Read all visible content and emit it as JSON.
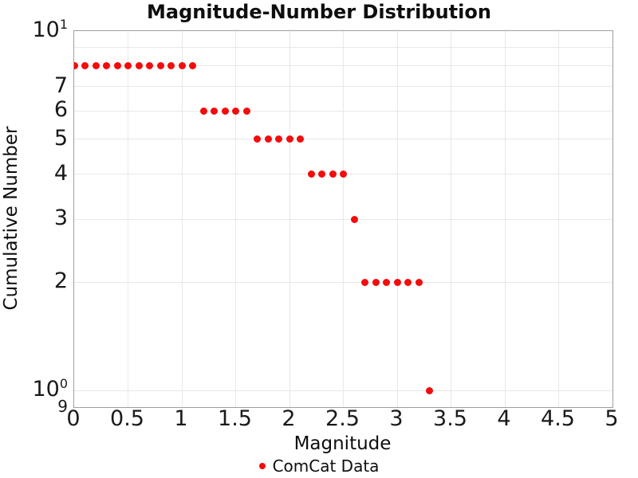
{
  "chart_data": {
    "type": "scatter",
    "title": "Magnitude-Number Distribution",
    "xlabel": "Magnitude",
    "ylabel": "Cumulative Number",
    "grid": true,
    "legend_position": "bottom-center",
    "colors": {
      "marker": "#f40b0b",
      "gridline": "#e8e8e8",
      "plot_border": "#9e9e9e",
      "text": "#0e0e0e"
    },
    "x_axis": {
      "scale": "linear",
      "min": 0,
      "max": 5,
      "gridlines": [
        0.5,
        1,
        1.5,
        2,
        2.5,
        3,
        3.5,
        4,
        4.5
      ],
      "ticks": [
        {
          "value": 0,
          "label": "0"
        },
        {
          "value": 0.5,
          "label": "0.5"
        },
        {
          "value": 1,
          "label": "1"
        },
        {
          "value": 1.5,
          "label": "1.5"
        },
        {
          "value": 2,
          "label": "2"
        },
        {
          "value": 2.5,
          "label": "2.5"
        },
        {
          "value": 3,
          "label": "3"
        },
        {
          "value": 3.5,
          "label": "3.5"
        },
        {
          "value": 4,
          "label": "4"
        },
        {
          "value": 4.5,
          "label": "4.5"
        },
        {
          "value": 5,
          "label": "5"
        }
      ]
    },
    "y_axis": {
      "scale": "log",
      "min": 0.9,
      "max": 10,
      "gridlines": [
        9,
        8,
        7,
        6,
        5,
        4,
        3,
        2,
        1
      ],
      "ticks": [
        {
          "value": 10,
          "label": "10",
          "sup": "1",
          "kind": "major"
        },
        {
          "value": 7,
          "label": "7",
          "kind": "major"
        },
        {
          "value": 6,
          "label": "6",
          "kind": "major"
        },
        {
          "value": 5,
          "label": "5",
          "kind": "major"
        },
        {
          "value": 4,
          "label": "4",
          "kind": "major"
        },
        {
          "value": 3,
          "label": "3",
          "kind": "major"
        },
        {
          "value": 2,
          "label": "2",
          "kind": "major"
        },
        {
          "value": 1,
          "label": "10",
          "sup": "0",
          "kind": "major"
        },
        {
          "value": 0.9,
          "label": "9",
          "kind": "minor"
        }
      ]
    },
    "series": [
      {
        "name": "ComCat Data",
        "color": "#f40b0b",
        "marker": "circle",
        "marker_size": 9,
        "points": [
          [
            0.0,
            8
          ],
          [
            0.1,
            8
          ],
          [
            0.2,
            8
          ],
          [
            0.3,
            8
          ],
          [
            0.4,
            8
          ],
          [
            0.5,
            8
          ],
          [
            0.6,
            8
          ],
          [
            0.7,
            8
          ],
          [
            0.8,
            8
          ],
          [
            0.9,
            8
          ],
          [
            1.0,
            8
          ],
          [
            1.1,
            8
          ],
          [
            1.2,
            6
          ],
          [
            1.3,
            6
          ],
          [
            1.4,
            6
          ],
          [
            1.5,
            6
          ],
          [
            1.6,
            6
          ],
          [
            1.7,
            5
          ],
          [
            1.8,
            5
          ],
          [
            1.9,
            5
          ],
          [
            2.0,
            5
          ],
          [
            2.1,
            5
          ],
          [
            2.2,
            4
          ],
          [
            2.3,
            4
          ],
          [
            2.4,
            4
          ],
          [
            2.5,
            4
          ],
          [
            2.6,
            3
          ],
          [
            2.7,
            2
          ],
          [
            2.8,
            2
          ],
          [
            2.9,
            2
          ],
          [
            3.0,
            2
          ],
          [
            3.1,
            2
          ],
          [
            3.2,
            2
          ],
          [
            3.3,
            1
          ]
        ]
      }
    ]
  }
}
